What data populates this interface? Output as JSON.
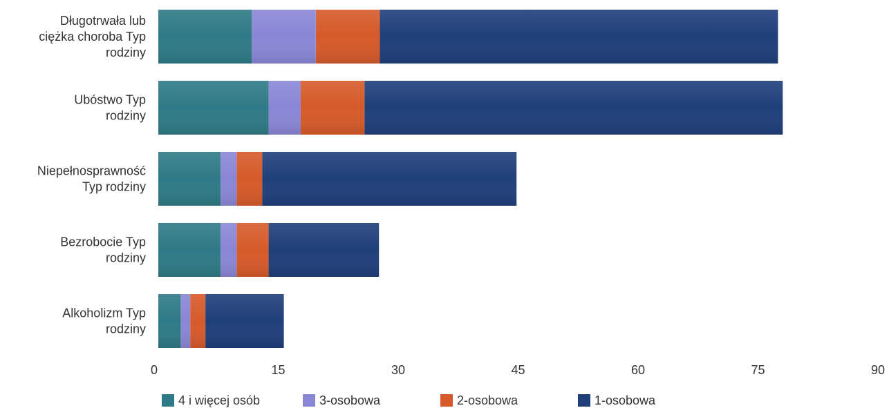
{
  "chart_data": {
    "type": "bar",
    "orientation": "horizontal",
    "stacked": true,
    "categories": [
      "Długotrwała lub ciężka choroba Typ rodziny",
      "Ubóstwo Typ rodziny",
      "Niepełnosprawność Typ rodziny",
      "Bezrobocie Typ rodziny",
      "Alkoholizm Typ rodziny"
    ],
    "category_lines": [
      [
        "Długotrwała lub",
        "ciężka choroba Typ",
        "rodziny"
      ],
      [
        "Ubóstwo Typ",
        "rodziny"
      ],
      [
        "Niepełnosprawność",
        "Typ rodziny"
      ],
      [
        "Bezrobocie Typ",
        "rodziny"
      ],
      [
        "Alkoholizm Typ",
        "rodziny"
      ]
    ],
    "series": [
      {
        "name": "4  i więcej osób",
        "color": "#2e7a86",
        "values": [
          11.7,
          13.8,
          7.8,
          7.8,
          2.8
        ]
      },
      {
        "name": "3-osobowa",
        "color": "#8a86d6",
        "values": [
          8.0,
          4.0,
          2.0,
          2.0,
          1.2
        ]
      },
      {
        "name": "2-osobowa",
        "color": "#d65a2a",
        "values": [
          8.0,
          8.0,
          3.2,
          4.0,
          1.9
        ]
      },
      {
        "name": "1-osobowa",
        "color": "#1f3f7a",
        "values": [
          49.8,
          52.3,
          31.8,
          13.8,
          9.8
        ]
      }
    ],
    "xlim": [
      0,
      90
    ],
    "xticks": [
      0,
      15,
      30,
      45,
      60,
      75,
      90
    ],
    "legend_position": "bottom",
    "grid": false
  }
}
